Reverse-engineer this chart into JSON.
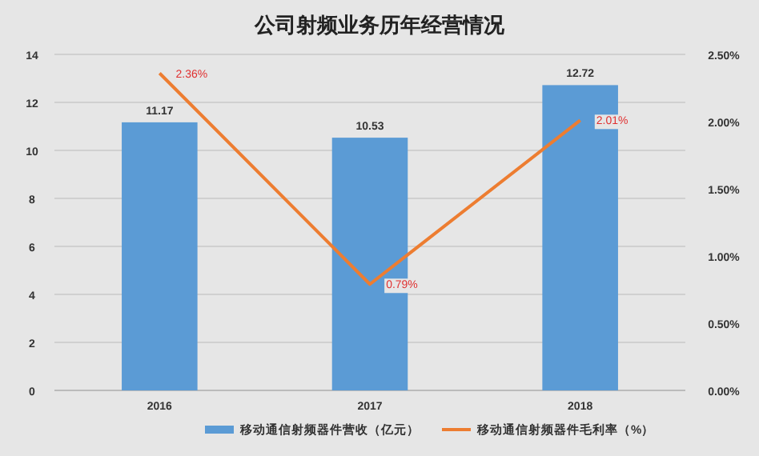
{
  "chart_data": {
    "type": "bar",
    "title": "公司射频业务历年经营情况",
    "categories": [
      "2016",
      "2017",
      "2018"
    ],
    "series": [
      {
        "name": "移动通信射频器件营收（亿元）",
        "color": "#5b9bd5",
        "values": [
          11.17,
          10.53,
          12.72
        ],
        "value_labels": [
          "11.17",
          "10.53",
          "12.72"
        ]
      },
      {
        "name": "移动通信射频器件毛利率（%）",
        "type": "line",
        "axis": "y2",
        "color": "#ed7d31",
        "values": [
          2.36,
          0.79,
          2.01
        ],
        "value_labels": [
          "2.36%",
          "0.79%",
          "2.01%"
        ]
      }
    ],
    "ylim": [
      0,
      14
    ],
    "yticks": [
      0,
      2,
      4,
      6,
      8,
      10,
      12,
      14
    ],
    "y2lim": [
      0,
      2.5
    ],
    "y2ticks": [
      {
        "value": 0,
        "label": "0.00%"
      },
      {
        "value": 0.5,
        "label": "0.50%"
      },
      {
        "value": 1,
        "label": "1.00%"
      },
      {
        "value": 1.5,
        "label": "1.50%"
      },
      {
        "value": 2,
        "label": "2.00%"
      },
      {
        "value": 2.5,
        "label": "2.50%"
      }
    ],
    "grid": "y",
    "legend": "bottom",
    "marker": "none",
    "line_style": "solid"
  }
}
